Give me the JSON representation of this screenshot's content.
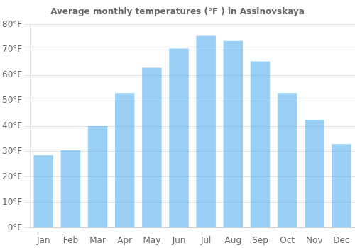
{
  "chart_data": {
    "type": "bar",
    "title": "Average monthly temperatures (°F ) in Assinovskaya",
    "categories": [
      "Jan",
      "Feb",
      "Mar",
      "Apr",
      "May",
      "Jun",
      "Jul",
      "Aug",
      "Sep",
      "Oct",
      "Nov",
      "Dec"
    ],
    "values": [
      28.5,
      30.5,
      40.0,
      53.0,
      63.0,
      70.5,
      75.5,
      73.5,
      65.5,
      53.0,
      42.5,
      33.0
    ],
    "ylim": [
      0,
      80
    ],
    "yticks": [
      {
        "value": 0,
        "label": "0°F"
      },
      {
        "value": 10,
        "label": "10°F"
      },
      {
        "value": 20,
        "label": "20°F"
      },
      {
        "value": 30,
        "label": "30°F"
      },
      {
        "value": 40,
        "label": "40°F"
      },
      {
        "value": 50,
        "label": "50°F"
      },
      {
        "value": 60,
        "label": "60°F"
      },
      {
        "value": 70,
        "label": "70°F"
      },
      {
        "value": 80,
        "label": "80°F"
      }
    ],
    "grid": true
  }
}
